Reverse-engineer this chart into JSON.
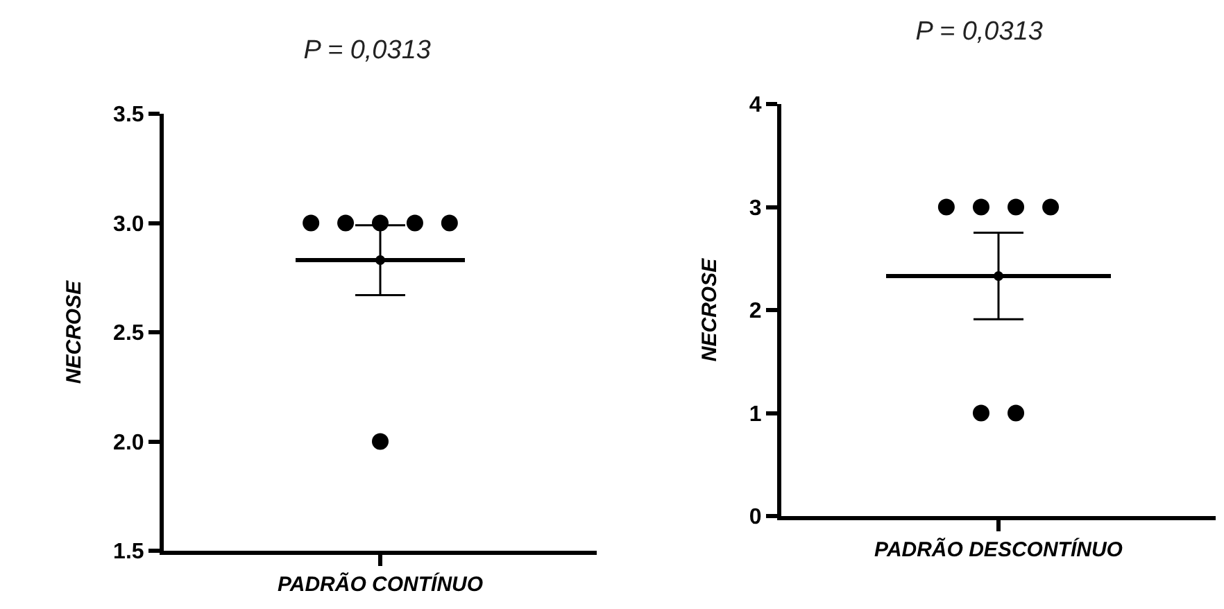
{
  "chart_data": [
    {
      "type": "scatter",
      "title": "P = 0,0313",
      "ylabel": "NECROSE",
      "categories": [
        "PADRÃO CONTÍNUO"
      ],
      "ylim": [
        1.5,
        3.5
      ],
      "yticks": [
        {
          "value": 1.5,
          "label": "1.5"
        },
        {
          "value": 2,
          "label": "2.0"
        },
        {
          "value": 2.5,
          "label": "2.5"
        },
        {
          "value": 3,
          "label": "3.0"
        },
        {
          "value": 3.5,
          "label": "3.5"
        }
      ],
      "grid": false,
      "marker": "circle",
      "series": [
        {
          "color": "#000000",
          "x": [
            "PADRÃO CONTÍNUO",
            "PADRÃO CONTÍNUO",
            "PADRÃO CONTÍNUO",
            "PADRÃO CONTÍNUO",
            "PADRÃO CONTÍNUO",
            "PADRÃO CONTÍNUO"
          ],
          "values": [
            3,
            3,
            3,
            3,
            3,
            2
          ]
        },
        {
          "color": "#000000",
          "x": [
            "PADRÃO CONTÍNUO"
          ],
          "values": [
            2.83
          ],
          "errors": [
            0.16
          ]
        }
      ],
      "ref_lines": [
        {
          "axis": "y",
          "value": 2.83,
          "color": "#000000"
        }
      ]
    },
    {
      "type": "scatter",
      "title": "P = 0,0313",
      "ylabel": "NECROSE",
      "categories": [
        "PADRÃO DESCONTÍNUO"
      ],
      "ylim": [
        0,
        4
      ],
      "yticks": [
        {
          "value": 0,
          "label": "0"
        },
        {
          "value": 1,
          "label": "1"
        },
        {
          "value": 2,
          "label": "2"
        },
        {
          "value": 3,
          "label": "3"
        },
        {
          "value": 4,
          "label": "4"
        }
      ],
      "grid": false,
      "marker": "circle",
      "series": [
        {
          "color": "#000000",
          "x": [
            "PADRÃO DESCONTÍNUO",
            "PADRÃO DESCONTÍNUO",
            "PADRÃO DESCONTÍNUO",
            "PADRÃO DESCONTÍNUO",
            "PADRÃO DESCONTÍNUO",
            "PADRÃO DESCONTÍNUO"
          ],
          "values": [
            3,
            3,
            3,
            3,
            1,
            1
          ]
        },
        {
          "color": "#000000",
          "x": [
            "PADRÃO DESCONTÍNUO"
          ],
          "values": [
            2.33
          ],
          "errors": [
            0.42
          ]
        }
      ],
      "ref_lines": [
        {
          "axis": "y",
          "value": 2.33,
          "color": "#000000"
        }
      ]
    }
  ]
}
